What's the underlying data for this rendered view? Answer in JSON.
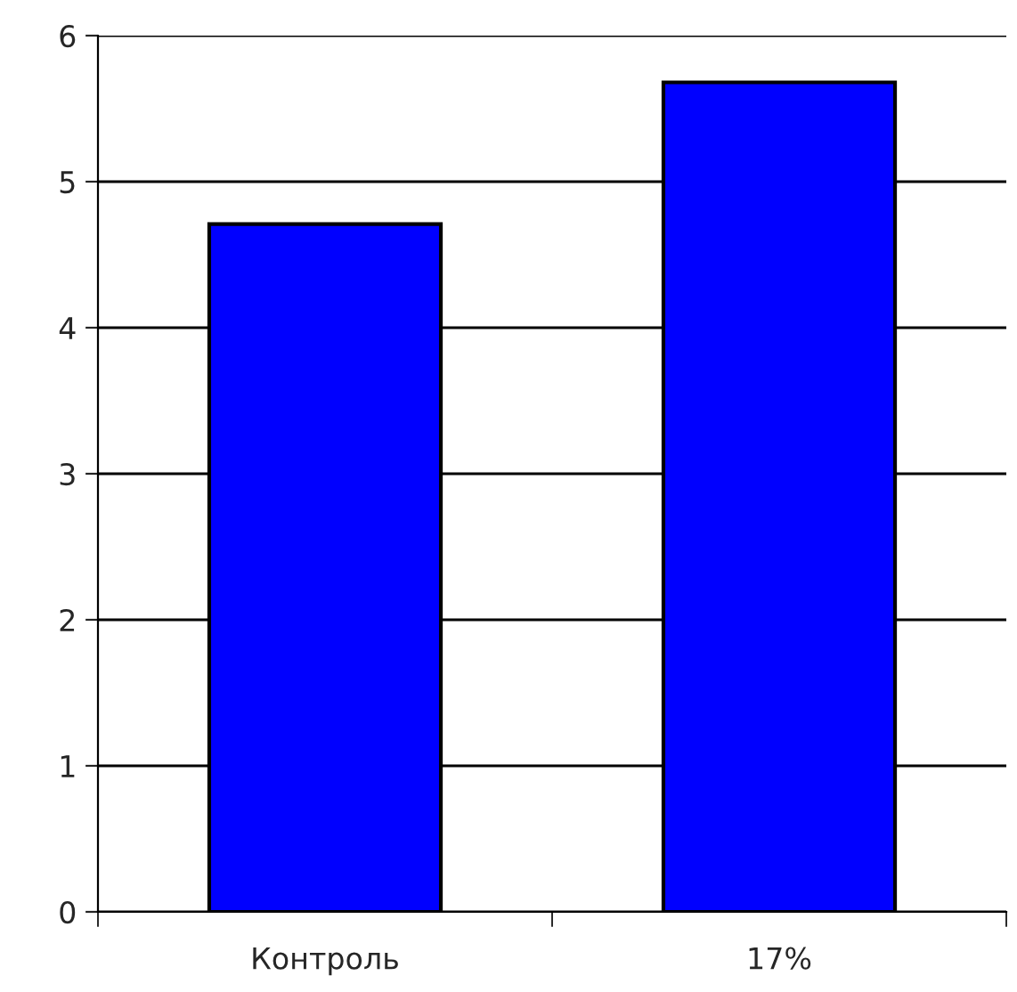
{
  "chart_data": {
    "type": "bar",
    "categories": [
      "Контроль",
      "17%"
    ],
    "values": [
      4.71,
      5.68
    ],
    "color": "#0000ff",
    "ylim": [
      0,
      6
    ],
    "yticks": [
      0,
      1,
      2,
      3,
      4,
      5,
      6
    ],
    "grid": "y"
  }
}
